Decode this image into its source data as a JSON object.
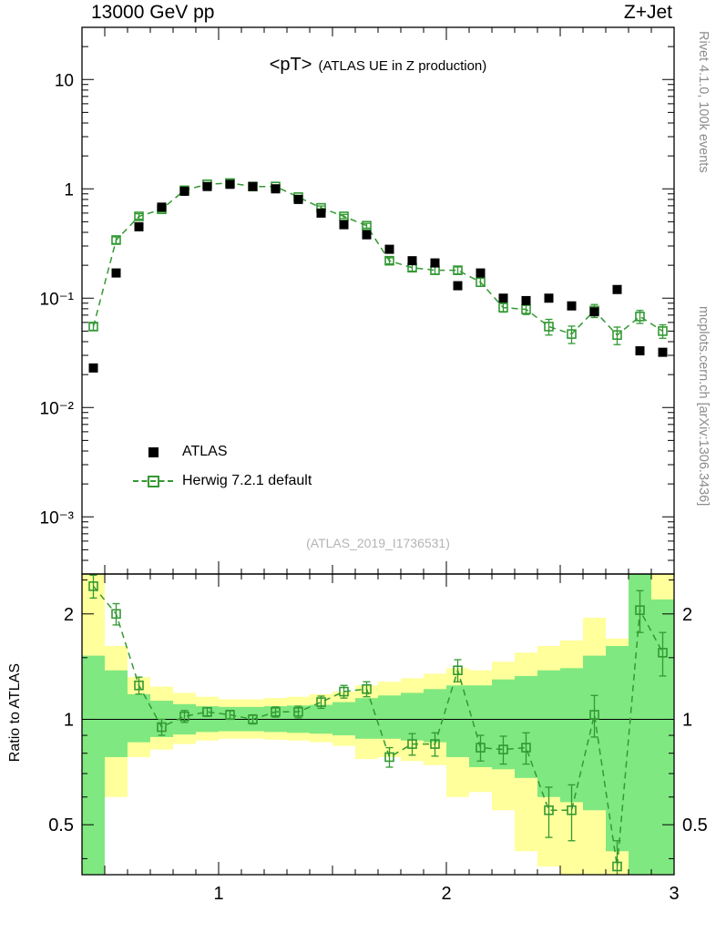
{
  "header": {
    "left": "13000 GeV pp",
    "right": "Z+Jet"
  },
  "watermarks": {
    "rivet": "Rivet 4.1.0,  100k events",
    "mcplots": "mcplots.cern.ch [arXiv:1306.3436]",
    "analysis": "(ATLAS_2019_I1736531)"
  },
  "colors": {
    "herwig_green": "#339933",
    "band_yellow": "#ffff9b",
    "band_green": "#80e880",
    "atlas_black": "#000000",
    "watermark_gray": "#8c8c8c",
    "analysis_gray": "#b4b4b4"
  },
  "chart_data": {
    "type": "scatter",
    "title": "<pT>",
    "subtitle": "(ATLAS UE in Z production)",
    "bin_half_width": 0.05,
    "x": [
      0.45,
      0.55,
      0.65,
      0.75,
      0.85,
      0.95,
      1.05,
      1.15,
      1.25,
      1.35,
      1.45,
      1.55,
      1.65,
      1.75,
      1.85,
      1.95,
      2.05,
      2.15,
      2.25,
      2.35,
      2.45,
      2.55,
      2.65,
      2.75,
      2.85,
      2.95
    ],
    "series": [
      {
        "name": "ATLAS",
        "marker": "filled-square",
        "color": "#000000",
        "rel_err": 0.04,
        "values": [
          0.023,
          0.17,
          0.45,
          0.68,
          0.95,
          1.05,
          1.1,
          1.05,
          1.0,
          0.8,
          0.6,
          0.47,
          0.38,
          0.28,
          0.22,
          0.21,
          0.13,
          0.17,
          0.1,
          0.095,
          0.1,
          0.085,
          0.075,
          0.12,
          0.033,
          0.032
        ]
      },
      {
        "name": "Herwig 7.2.1 default",
        "marker": "open-square",
        "color": "#339933",
        "line": "dashed",
        "values": [
          0.055,
          0.34,
          0.56,
          0.65,
          0.97,
          1.1,
          1.13,
          1.05,
          1.05,
          0.84,
          0.67,
          0.56,
          0.46,
          0.22,
          0.19,
          0.18,
          0.18,
          0.14,
          0.082,
          0.079,
          0.055,
          0.047,
          0.077,
          0.046,
          0.068,
          0.05
        ]
      }
    ],
    "x_axis": {
      "range": [
        0.4,
        3.0
      ],
      "ticks": [
        {
          "v": 1,
          "label": "1"
        },
        {
          "v": 2,
          "label": "2"
        },
        {
          "v": 3,
          "label": "3"
        }
      ]
    },
    "y_axis": {
      "scale": "log",
      "range": [
        0.0003,
        30
      ],
      "ticks": [
        {
          "v": 10,
          "label": "10"
        },
        {
          "v": 1,
          "label": "1"
        },
        {
          "v": 0.1,
          "label": "10⁻¹"
        },
        {
          "v": 0.01,
          "label": "10⁻²"
        },
        {
          "v": 0.001,
          "label": "10⁻³"
        }
      ]
    },
    "ratio_panel": {
      "label": "Ratio to ATLAS",
      "scale": "log",
      "ylim": [
        0.36,
        2.6
      ],
      "ticks": [
        {
          "v": 0.5,
          "label": "0.5"
        },
        {
          "v": 1,
          "label": "1"
        },
        {
          "v": 2,
          "label": "2"
        }
      ],
      "minor_ticks": [
        0.4,
        0.6,
        0.7,
        0.8,
        0.9,
        1.5,
        2.5
      ],
      "reference_line": 1,
      "values": [
        2.4,
        2.0,
        1.25,
        0.95,
        1.02,
        1.05,
        1.03,
        1.0,
        1.05,
        1.05,
        1.12,
        1.2,
        1.22,
        0.78,
        0.85,
        0.85,
        1.38,
        0.83,
        0.82,
        0.83,
        0.55,
        0.55,
        1.03,
        0.38,
        2.05,
        1.55
      ],
      "errors": [
        0.18,
        0.14,
        0.07,
        0.05,
        0.04,
        0.03,
        0.03,
        0.03,
        0.035,
        0.04,
        0.045,
        0.05,
        0.06,
        0.05,
        0.06,
        0.065,
        0.1,
        0.07,
        0.075,
        0.085,
        0.09,
        0.1,
        0.14,
        0.07,
        0.28,
        0.22
      ],
      "bands": {
        "yellow": [
          [
            0.36,
            2.6
          ],
          [
            0.6,
            1.62
          ],
          [
            0.78,
            1.32
          ],
          [
            0.82,
            1.24
          ],
          [
            0.85,
            1.19
          ],
          [
            0.87,
            1.16
          ],
          [
            0.88,
            1.14
          ],
          [
            0.88,
            1.14
          ],
          [
            0.875,
            1.15
          ],
          [
            0.87,
            1.16
          ],
          [
            0.86,
            1.18
          ],
          [
            0.84,
            1.2
          ],
          [
            0.77,
            1.25
          ],
          [
            0.78,
            1.28
          ],
          [
            0.76,
            1.31
          ],
          [
            0.74,
            1.35
          ],
          [
            0.6,
            1.4
          ],
          [
            0.62,
            1.38
          ],
          [
            0.55,
            1.46
          ],
          [
            0.42,
            1.55
          ],
          [
            0.38,
            1.62
          ],
          [
            0.36,
            1.68
          ],
          [
            0.36,
            1.95
          ],
          [
            0.36,
            1.7
          ],
          [
            0.36,
            2.6
          ],
          [
            0.36,
            2.6
          ]
        ],
        "green": [
          [
            0.36,
            1.52
          ],
          [
            0.78,
            1.38
          ],
          [
            0.86,
            1.18
          ],
          [
            0.89,
            1.13
          ],
          [
            0.905,
            1.105
          ],
          [
            0.92,
            1.09
          ],
          [
            0.925,
            1.085
          ],
          [
            0.925,
            1.085
          ],
          [
            0.92,
            1.09
          ],
          [
            0.915,
            1.095
          ],
          [
            0.91,
            1.1
          ],
          [
            0.9,
            1.12
          ],
          [
            0.88,
            1.15
          ],
          [
            0.88,
            1.17
          ],
          [
            0.87,
            1.19
          ],
          [
            0.86,
            1.22
          ],
          [
            0.78,
            1.25
          ],
          [
            0.73,
            1.25
          ],
          [
            0.72,
            1.3
          ],
          [
            0.68,
            1.33
          ],
          [
            0.6,
            1.38
          ],
          [
            0.58,
            1.4
          ],
          [
            0.55,
            1.52
          ],
          [
            0.42,
            1.62
          ],
          [
            0.36,
            2.6
          ],
          [
            0.36,
            2.2
          ]
        ]
      }
    }
  }
}
